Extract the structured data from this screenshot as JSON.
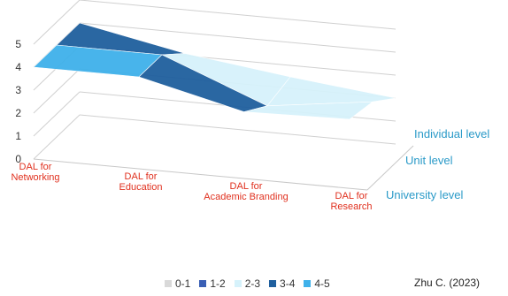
{
  "chart_data": {
    "type": "surface",
    "title": "",
    "z_ticks": [
      "0",
      "1",
      "2",
      "3",
      "4",
      "5"
    ],
    "zlim": [
      0,
      5
    ],
    "categories": [
      "DAL for Networking",
      "DAL for Education",
      "DAL for Academic Branding",
      "DAL for Research"
    ],
    "series": [
      {
        "name": "Individual level",
        "values": [
          4,
          4,
          2.9,
          3
        ]
      },
      {
        "name": "Unit level",
        "values": [
          4,
          4,
          2.2,
          2.8
        ]
      },
      {
        "name": "University level",
        "values": [
          4,
          3.1,
          2.5,
          2
        ]
      }
    ],
    "legend": {
      "position": "bottom",
      "entries": [
        {
          "label": "0-1",
          "color": "#d9d9d9"
        },
        {
          "label": "1-2",
          "color": "#3a5fb5"
        },
        {
          "label": "2-3",
          "color": "#d6f2fb"
        },
        {
          "label": "3-4",
          "color": "#1f5f9e"
        },
        {
          "label": "4-5",
          "color": "#3fb1ea"
        }
      ]
    },
    "category_label_color": "#e0301e",
    "series_label_color": "#2a9ac8"
  },
  "credit": "Zhu C. (2023)"
}
